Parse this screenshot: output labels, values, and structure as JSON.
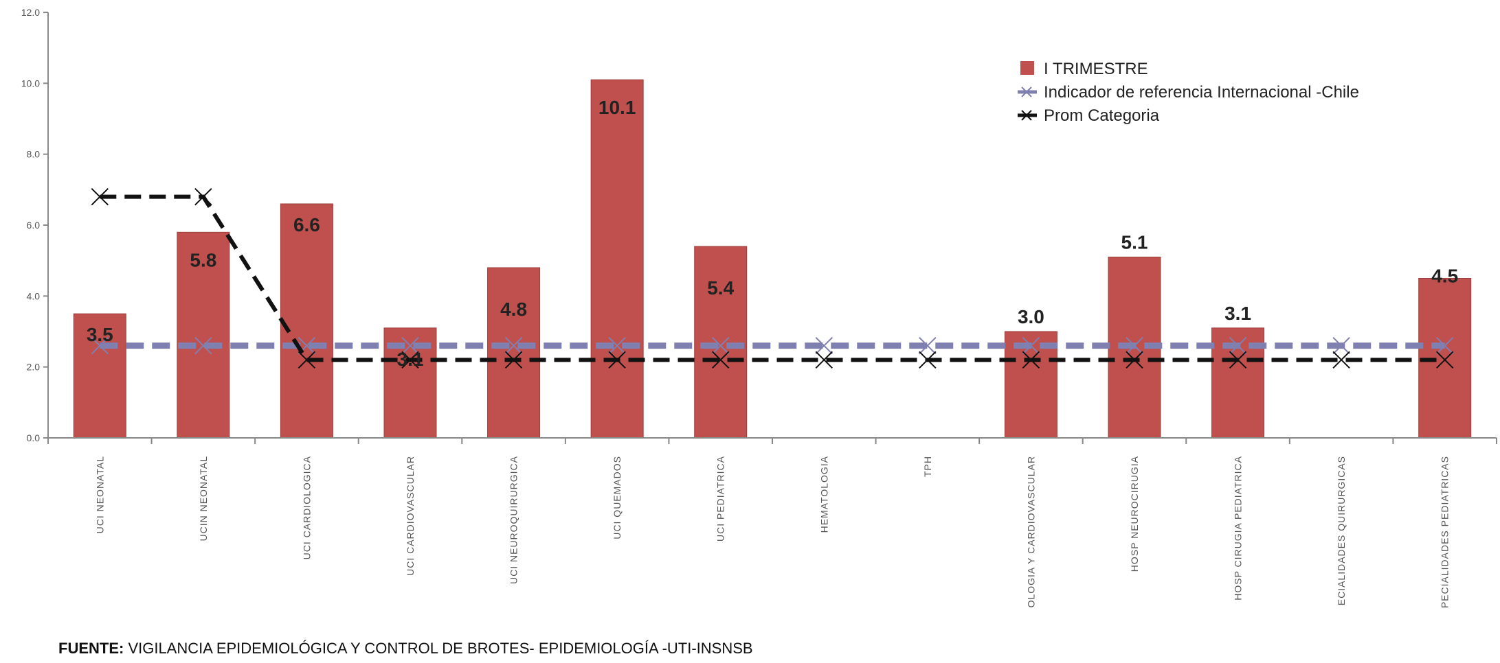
{
  "chart_data": {
    "type": "bar",
    "categories": [
      "UCI NEONATAL",
      "UCIN NEONATAL",
      "UCI CARDIOLOGICA",
      "UCI CARDIOVASCULAR",
      "UCI NEUROQUIRURGICA",
      "UCI QUEMADOS",
      "UCI PEDIATRICA",
      "HEMATOLOGIA",
      "TPH",
      "OLOGIA Y CARDIOVASCULAR",
      "HOSP NEUROCIRUGIA",
      "HOSP CIRUGIA PEDIATRICA",
      "ECIALIDADES QUIRURGICAS",
      "PECIALIDADES PEDIATRICAS"
    ],
    "series": [
      {
        "name": "I TRIMESTRE",
        "type": "bar",
        "color": "#c0504d",
        "values": [
          3.5,
          5.8,
          6.6,
          3.1,
          4.8,
          10.1,
          5.4,
          null,
          null,
          3.0,
          5.1,
          3.1,
          null,
          4.5
        ],
        "labels": [
          "3.5",
          "5.8",
          "6.6",
          "3.1",
          "4.8",
          "10.1",
          "5.4",
          "",
          "",
          "3.0",
          "5.1",
          "3.1",
          "",
          "4.5"
        ]
      },
      {
        "name": "Indicador de referencia Internacional -Chile",
        "type": "line",
        "color": "#8080b0",
        "dashed": true,
        "values": [
          2.6,
          2.6,
          2.6,
          2.6,
          2.6,
          2.6,
          2.6,
          2.6,
          2.6,
          2.6,
          2.6,
          2.6,
          2.6,
          2.6
        ]
      },
      {
        "name": "Prom Categoria",
        "type": "line",
        "color": "#111111",
        "dashed": true,
        "values": [
          6.8,
          6.8,
          2.2,
          2.2,
          2.2,
          2.2,
          2.2,
          2.2,
          2.2,
          2.2,
          2.2,
          2.2,
          2.2,
          2.2
        ]
      }
    ],
    "y_ticks": [
      "0.0",
      "2.0",
      "4.0",
      "6.0",
      "8.0",
      "10.0",
      "12.0"
    ],
    "ylim": [
      0,
      12
    ],
    "grid": false,
    "legend_position": "top-right"
  },
  "footer": {
    "source_label": "FUENTE:",
    "source_text": " VIGILANCIA EPIDEMIOLÓGICA Y CONTROL DE BROTES- EPIDEMIOLOGÍA  -UTI-INSNSB"
  }
}
